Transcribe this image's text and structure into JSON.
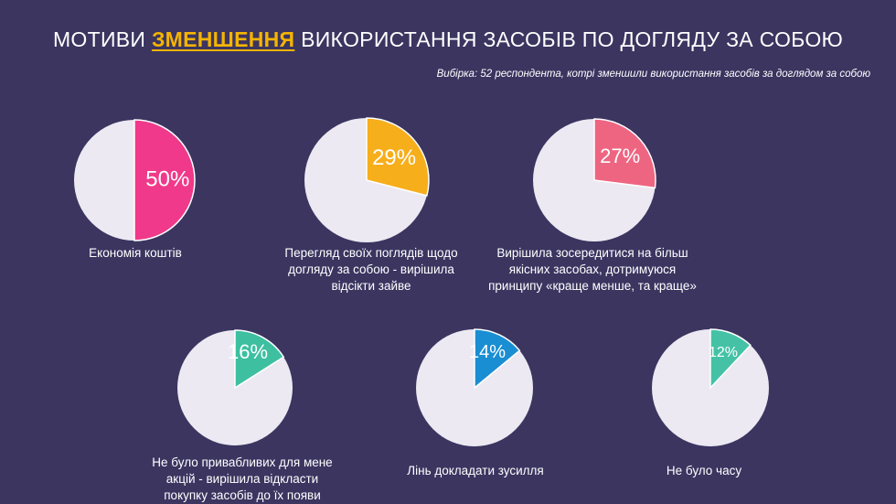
{
  "title": {
    "prefix": "МОТИВИ ",
    "highlight": "ЗМЕНШЕННЯ",
    "suffix": " ВИКОРИСТАННЯ ЗАСОБІВ ПО ДОГЛЯДУ ЗА СОБОЮ"
  },
  "subtitle": "Вибірка: 52 респондента, котрі  зменшили використання засобів за доглядом за собою",
  "colors": {
    "background": "#3b3560",
    "pie_base": "#ece9f2",
    "highlight": "#f4b400"
  },
  "chart_data": [
    {
      "type": "pie",
      "label": "Економія коштів",
      "value": 50,
      "value_label": "50%",
      "color": "#f0398a"
    },
    {
      "type": "pie",
      "label": "Перегляд своїх поглядів щодо догляду за собою - вирішила відсікти зайве",
      "value": 29,
      "value_label": "29%",
      "color": "#f7ae1b"
    },
    {
      "type": "pie",
      "label": "Вирішила зосередитися на більш якісних засобах, дотримуюся принципу «краще менше, та краще»",
      "value": 27,
      "value_label": "27%",
      "color": "#ee6582"
    },
    {
      "type": "pie",
      "label": "Не було привабливих для мене акцій - вирішила відкласти покупку засобів до їх появи",
      "value": 16,
      "value_label": "16%",
      "color": "#3dbfa0"
    },
    {
      "type": "pie",
      "label": "Лінь докладати зусилля",
      "value": 14,
      "value_label": "14%",
      "color": "#1a8ed3"
    },
    {
      "type": "pie",
      "label": "Не було часу",
      "value": 12,
      "value_label": "12%",
      "color": "#45c2a6"
    }
  ]
}
